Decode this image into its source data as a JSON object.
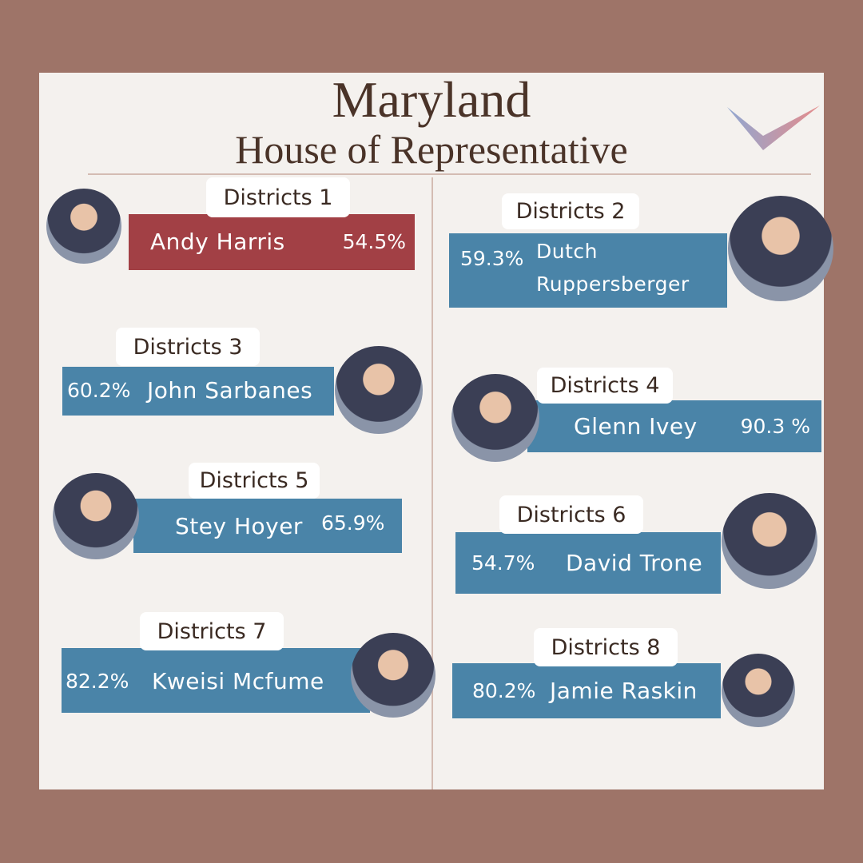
{
  "header": {
    "title": "Maryland",
    "subtitle": "House of Representative"
  },
  "districts": [
    {
      "label": "Districts 1",
      "name": "Andy Harris",
      "percent": "54.5%",
      "color": "#a24045"
    },
    {
      "label": "Districts 2",
      "name": "Dutch Ruppersberger",
      "percent": "59.3%",
      "color": "#4a84a8"
    },
    {
      "label": "Districts 3",
      "name": "John Sarbanes",
      "percent": "60.2%",
      "color": "#4a84a8"
    },
    {
      "label": "Districts 4",
      "name": "Glenn Ivey",
      "percent": "90.3 %",
      "color": "#4a84a8"
    },
    {
      "label": "Districts 5",
      "name": "Stey Hoyer",
      "percent": "65.9%",
      "color": "#4a84a8"
    },
    {
      "label": "Districts 6",
      "name": "David Trone",
      "percent": "54.7%",
      "color": "#4a84a8"
    },
    {
      "label": "Districts 7",
      "name": "Kweisi Mcfume",
      "percent": "82.2%",
      "color": "#4a84a8"
    },
    {
      "label": "Districts 8",
      "name": "Jamie Raskin",
      "percent": "80.2%",
      "color": "#4a84a8"
    }
  ]
}
